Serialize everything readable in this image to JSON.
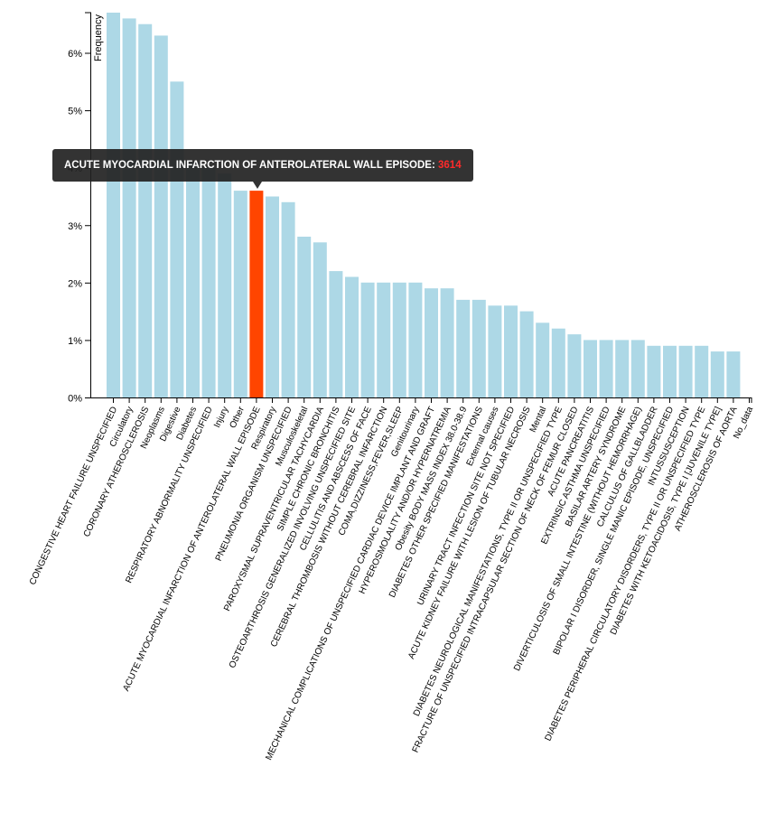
{
  "chart_data": {
    "type": "bar",
    "title": "",
    "xlabel": "",
    "ylabel": "Frequency",
    "ylim": [
      0,
      6.7
    ],
    "yticks": [
      0,
      1,
      2,
      3,
      4,
      5,
      6
    ],
    "ytick_suffix": "%",
    "bar_color": "#add8e6",
    "highlight_color": "#ff4500",
    "highlight_index": 9,
    "categories": [
      "CONGESTIVE HEART FAILURE UNSPECIFIED",
      "Circulatory",
      "CORONARY ATHEROSCLEROSIS",
      "Neoplasms",
      "Digestive",
      "Diabetes",
      "RESPIRATORY ABNORMALITY UNSPECIFIED",
      "Injury",
      "Other",
      "ACUTE MYOCARDIAL INFARCTION OF ANTEROLATERAL WALL EPISODE",
      "Respiratory",
      "PNEUMONIA ORGANISM UNSPECIFIED",
      "Musculoskeletal",
      "PAROXYSMAL SUPRAVENTRICULAR TACHYCARDIA",
      "SIMPLE CHRONIC BRONCHITIS",
      "OSTEOARTHROSIS GENERALIZED INVOLVING UNSPECIFIED SITE",
      "CELLULITIS AND ABSCESS OF FACE",
      "CEREBRAL THROMBOSIS WITHOUT CEREBRAL INFARCTION",
      "COMA,DIZZINESS,FEVER,SLEEP",
      "Genitourinary",
      "MECHANICAL COMPLICATIONS OF UNSPECIFIED CARDIAC DEVICE IMPLANT AND GRAFT",
      "HYPEROSMOLALITY AND/OR HYPERNATREMIA",
      "Obesity BODY MASS INDEX 38.0-38.9",
      "DIABETES OTHER SPECIFIED MANIFESTATIONS",
      "External causes",
      "URINARY TRACT INFECTION SITE NOT SPECIFIED",
      "ACUTE KIDNEY FAILURE WITH LESION OF TUBULAR NECROSIS",
      "Mental",
      "DIABETES NEUROLOGICAL MANIFESTATIONS, TYPE II OR UNSPECIFIED TYPE",
      "FRACTURE OF UNSPECIFIED INTRACAPSULAR SECTION OF NECK OF FEMUR CLOSED",
      "ACUTE PANCREATITIS",
      "EXTRINSIC ASTHMA UNSPECIFIED",
      "BASILAR ARTERY SYNDROME",
      "DIVERTICULOSIS OF SMALL INTESTINE (WITHOUT HEMORRHAGE)",
      "CALCULUS OF GALLBLADDER",
      "BIPOLAR I DISORDER, SINGLE MANIC EPISODE, UNSPECIFIED",
      "INTUSSUSCEPTION",
      "DIABETES PERIPHERAL CIRCULATORY DISORDERS, TYPE II OR UNSPECIFIED TYPE",
      "DIABETES WITH KETOACIDOSIS, TYPE I [JUVENILE TYPE]",
      "ATHEROSCLEROSIS OF AORTA",
      "No_data"
    ],
    "values": [
      6.7,
      6.6,
      6.5,
      6.3,
      5.5,
      4.1,
      4.0,
      3.9,
      3.6,
      3.6,
      3.5,
      3.4,
      2.8,
      2.7,
      2.2,
      2.1,
      2.0,
      2.0,
      2.0,
      2.0,
      1.9,
      1.9,
      1.7,
      1.7,
      1.6,
      1.6,
      1.5,
      1.3,
      1.2,
      1.1,
      1.0,
      1.0,
      1.0,
      1.0,
      0.9,
      0.9,
      0.9,
      0.9,
      0.8,
      0.8,
      0
    ]
  },
  "tooltip": {
    "label": "ACUTE MYOCARDIAL INFARCTION OF ANTEROLATERAL WALL EPISODE:",
    "value": "3614"
  }
}
